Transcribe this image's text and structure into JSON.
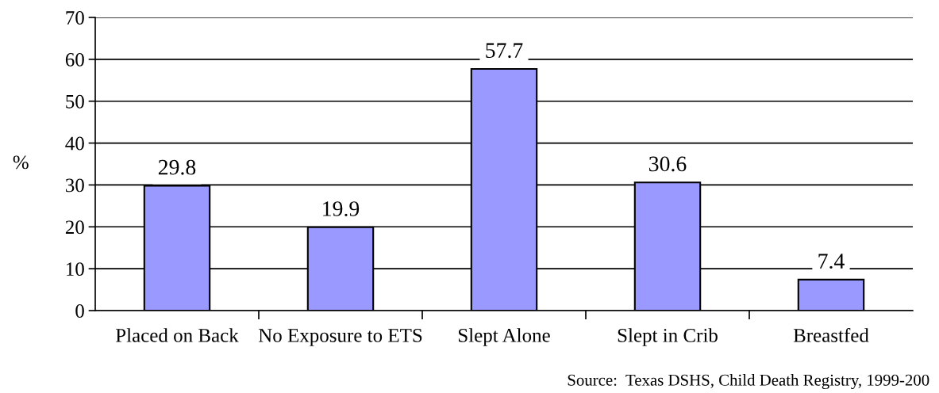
{
  "chart_data": {
    "type": "bar",
    "ylabel": "%",
    "categories": [
      "Placed on Back",
      "No Exposure to ETS",
      "Slept Alone",
      "Slept in Crib",
      "Breastfed"
    ],
    "values": [
      29.8,
      19.9,
      57.7,
      30.6,
      7.4
    ],
    "color": "#9999ff",
    "ylim": [
      0,
      70
    ],
    "yticks": [
      0,
      10,
      20,
      30,
      40,
      50,
      60,
      70
    ],
    "grid": "y",
    "data_labels": true,
    "annotations": [
      "Source:  Texas DSHS, Child Death Registry, 1999-200"
    ]
  }
}
